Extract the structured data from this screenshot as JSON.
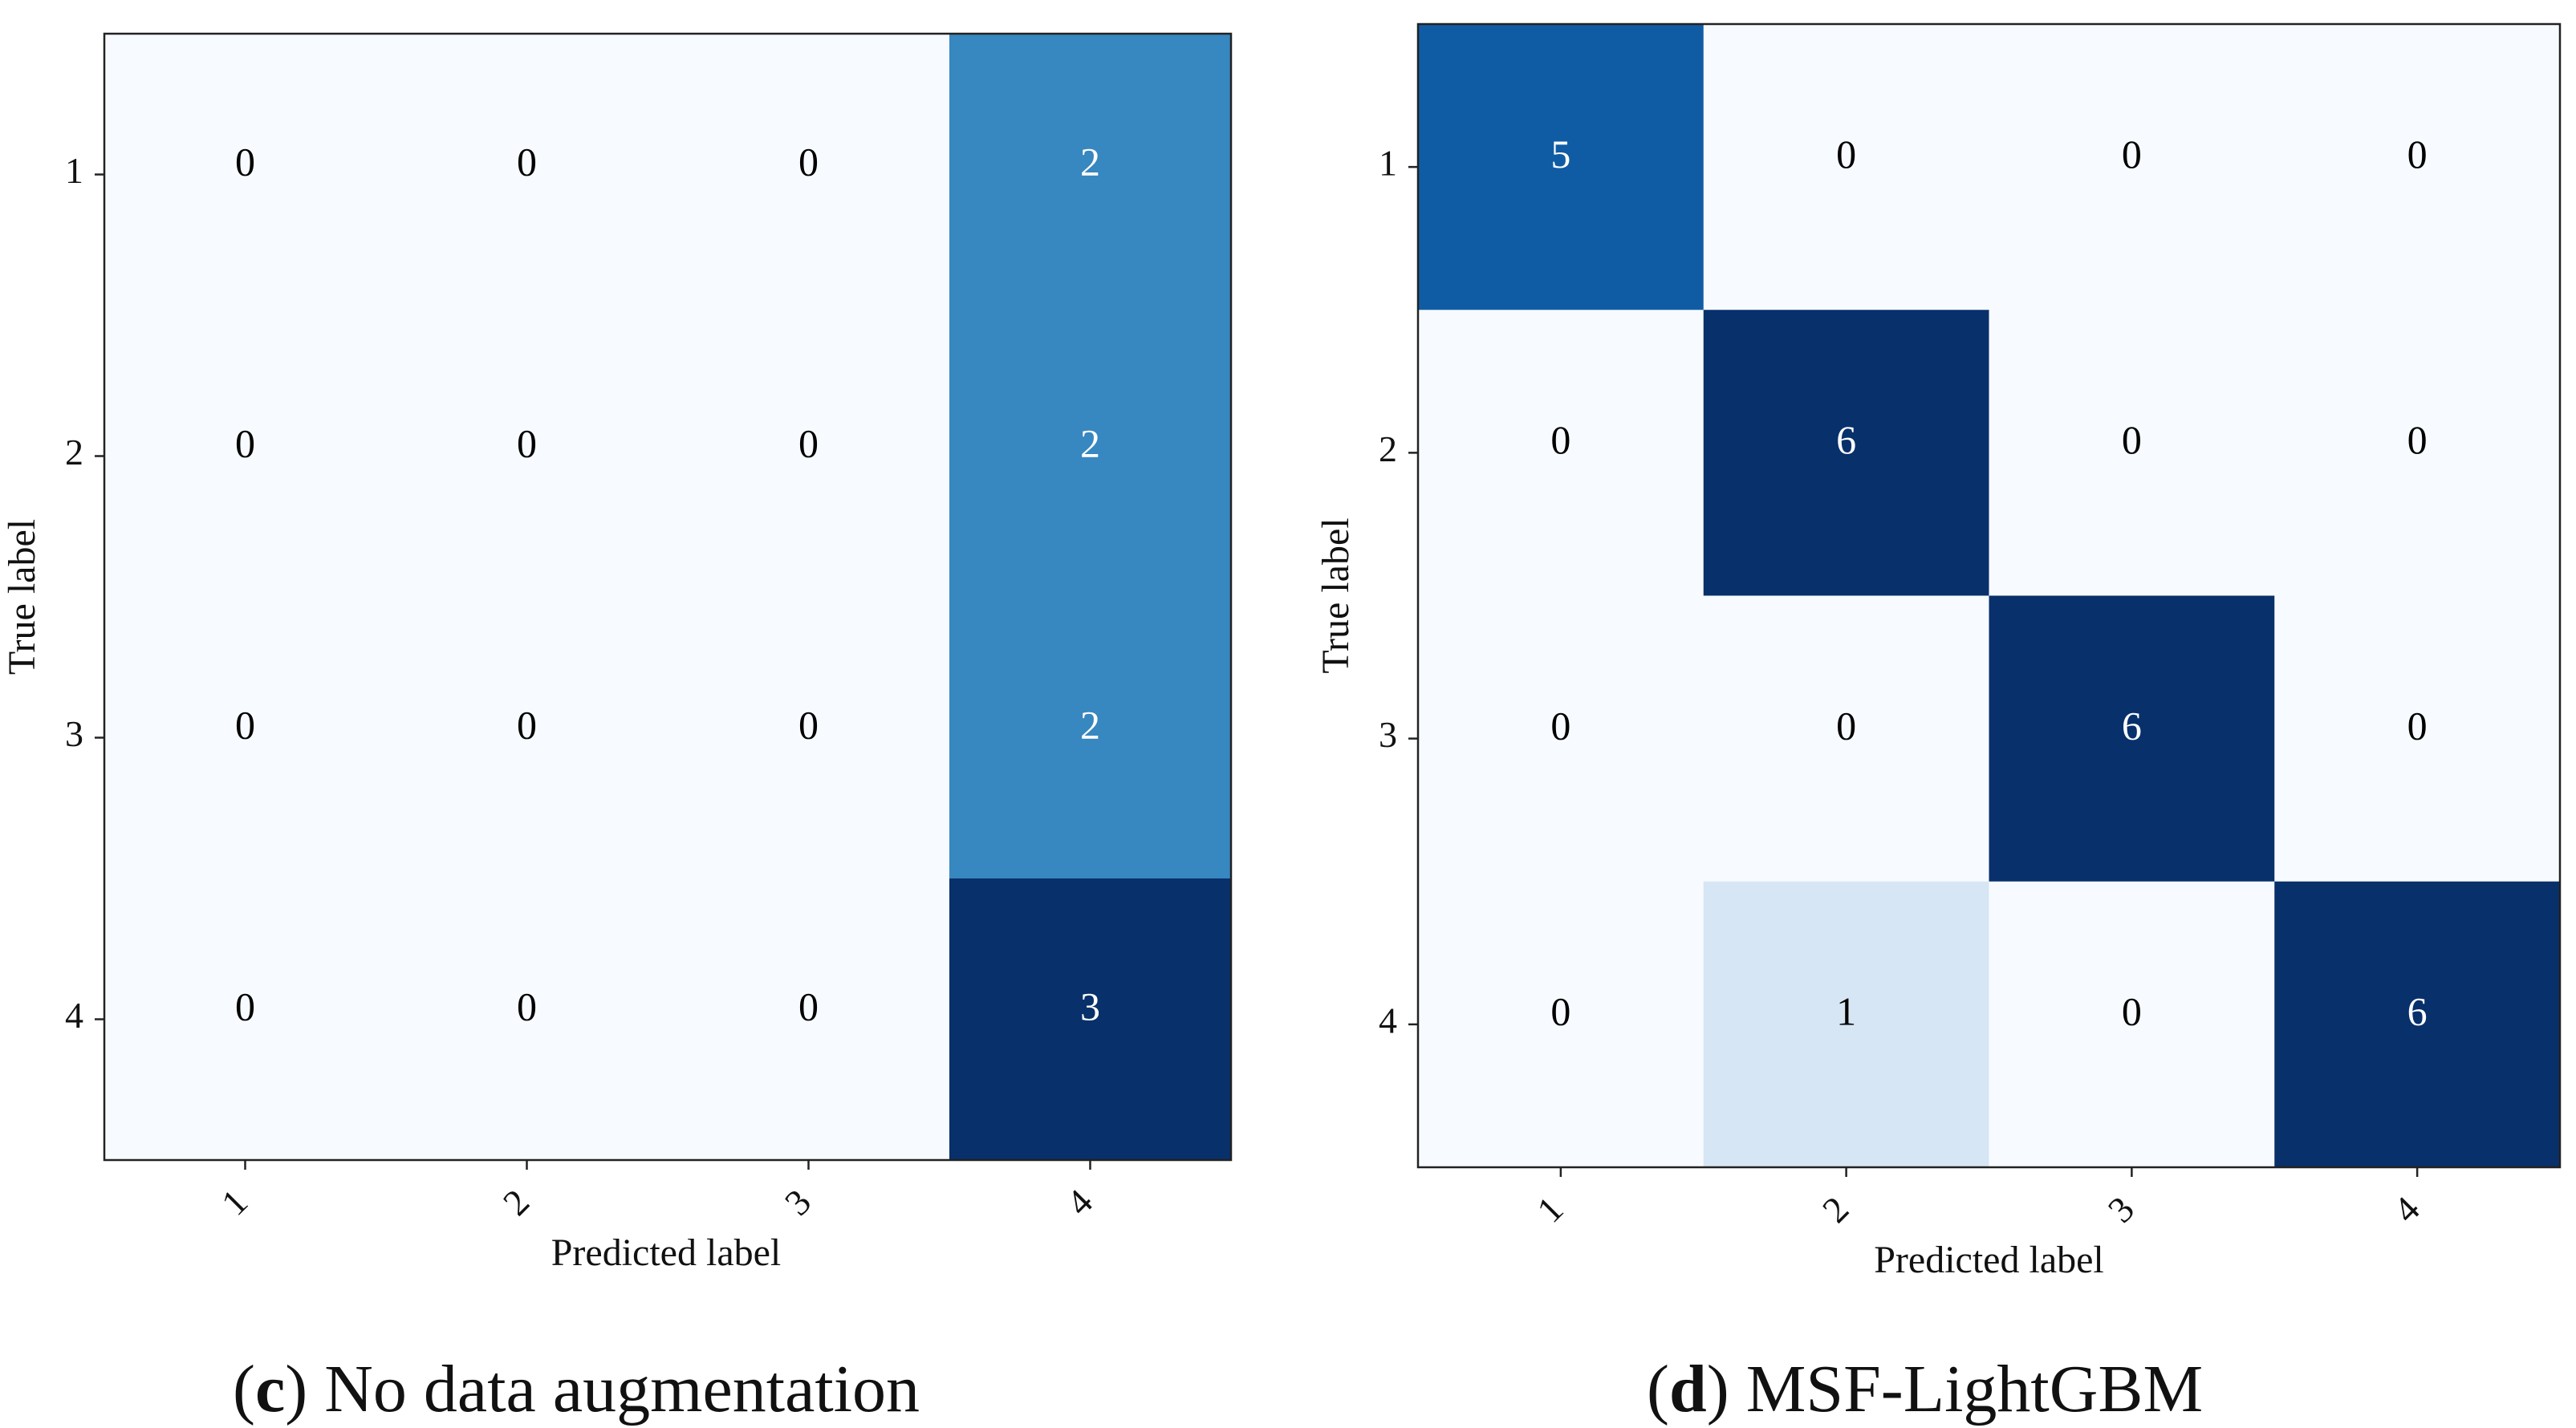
{
  "chart_data": [
    {
      "type": "heatmap",
      "subtype": "confusion-matrix",
      "colormap": "Blues",
      "panel_letter": "c",
      "title": "No data augmentation",
      "xlabel": "Predicted label",
      "ylabel": "True label",
      "x_tick_labels": [
        "1",
        "2",
        "3",
        "4"
      ],
      "y_tick_labels": [
        "1",
        "2",
        "3",
        "4"
      ],
      "matrix": [
        [
          0,
          0,
          0,
          2
        ],
        [
          0,
          0,
          0,
          2
        ],
        [
          0,
          0,
          0,
          2
        ],
        [
          0,
          0,
          0,
          3
        ]
      ],
      "vmin": 0,
      "vmax": 3
    },
    {
      "type": "heatmap",
      "subtype": "confusion-matrix",
      "colormap": "Blues",
      "panel_letter": "d",
      "title": "MSF-LightGBM",
      "xlabel": "Predicted label",
      "ylabel": "True label",
      "x_tick_labels": [
        "1",
        "2",
        "3",
        "4"
      ],
      "y_tick_labels": [
        "1",
        "2",
        "3",
        "4"
      ],
      "matrix": [
        [
          5,
          0,
          0,
          0
        ],
        [
          0,
          6,
          0,
          0
        ],
        [
          0,
          0,
          6,
          0
        ],
        [
          0,
          1,
          0,
          6
        ]
      ],
      "vmin": 0,
      "vmax": 6
    }
  ]
}
